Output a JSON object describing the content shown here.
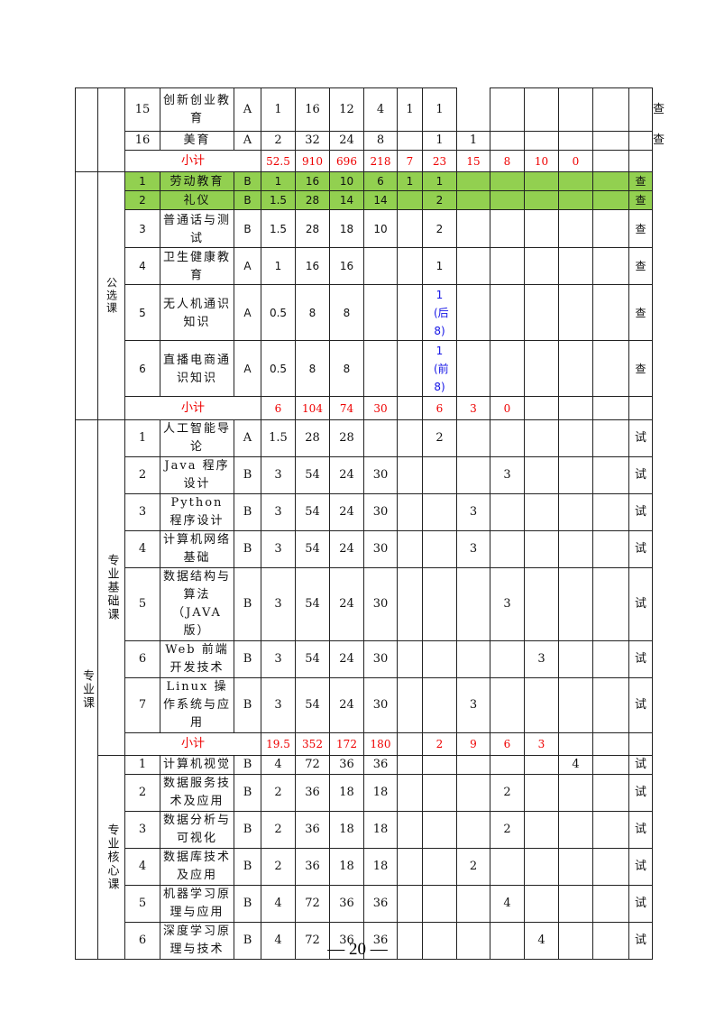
{
  "page_number": "— 20 —",
  "colors": {
    "green_highlight": "#92d050",
    "subtotal_red": "#ee0000",
    "note_blue": "#1414e6"
  },
  "groups": [
    {
      "outer": "",
      "inner": "",
      "rows": [
        {
          "no": "15",
          "name": "创新创业教育",
          "type": "A",
          "vals": [
            "1",
            "16",
            "12",
            "4",
            "1",
            "1",
            "",
            "",
            "",
            "",
            "",
            ""
          ],
          "exam": "查"
        },
        {
          "no": "16",
          "name": "美育",
          "type": "A",
          "vals": [
            "2",
            "32",
            "24",
            "8",
            "",
            "1",
            "1",
            "",
            "",
            "",
            "",
            ""
          ],
          "exam": "查"
        },
        {
          "subtotal": "小计",
          "vals": [
            "52.5",
            "910",
            "696",
            "218",
            "7",
            "23",
            "15",
            "8",
            "10",
            "0",
            ""
          ],
          "exam": ""
        }
      ]
    },
    {
      "outer": "",
      "inner": "公选课",
      "rows": [
        {
          "no": "1",
          "name": "劳动教育",
          "type": "B",
          "vals": [
            "1",
            "16",
            "10",
            "6",
            "1",
            "1",
            "",
            "",
            "",
            "",
            ""
          ],
          "exam": "查",
          "green": true
        },
        {
          "no": "2",
          "name": "礼仪",
          "type": "B",
          "vals": [
            "1.5",
            "28",
            "14",
            "14",
            "",
            "2",
            "",
            "",
            "",
            "",
            ""
          ],
          "exam": "查",
          "green": true
        },
        {
          "no": "3",
          "name": "普通话与测试",
          "type": "B",
          "vals": [
            "1.5",
            "28",
            "18",
            "10",
            "",
            "2",
            "",
            "",
            "",
            "",
            ""
          ],
          "exam": "查"
        },
        {
          "no": "4",
          "name": "卫生健康教育",
          "type": "A",
          "vals": [
            "1",
            "16",
            "16",
            "",
            "",
            "1",
            "",
            "",
            "",
            "",
            ""
          ],
          "exam": "查"
        },
        {
          "no": "5",
          "name": "无人机通识知识",
          "type": "A",
          "vals": [
            "0.5",
            "8",
            "8",
            "",
            "",
            "1(后8)",
            "",
            "",
            "",
            "",
            ""
          ],
          "exam": "查"
        },
        {
          "no": "6",
          "name": "直播电商通识知识",
          "type": "A",
          "vals": [
            "0.5",
            "8",
            "8",
            "",
            "",
            "1(前8)",
            "",
            "",
            "",
            "",
            ""
          ],
          "exam": "查"
        },
        {
          "subtotal": "小计",
          "vals": [
            "6",
            "104",
            "74",
            "30",
            "",
            "6",
            "3",
            "0",
            "",
            "",
            ""
          ],
          "exam": ""
        }
      ]
    },
    {
      "outer": "专业课",
      "inner": "专业基础课",
      "rows": [
        {
          "no": "1",
          "name": "人工智能导论",
          "type": "A",
          "vals": [
            "1.5",
            "28",
            "28",
            "",
            "",
            "2",
            "",
            "",
            "",
            "",
            ""
          ],
          "exam": "试"
        },
        {
          "no": "2",
          "name": "Java 程序设计",
          "type": "B",
          "vals": [
            "3",
            "54",
            "24",
            "30",
            "",
            "",
            "",
            "3",
            "",
            "",
            ""
          ],
          "exam": "试"
        },
        {
          "no": "3",
          "name": "Python 程序设计",
          "type": "B",
          "vals": [
            "3",
            "54",
            "24",
            "30",
            "",
            "",
            "3",
            "",
            "",
            "",
            ""
          ],
          "exam": "试"
        },
        {
          "no": "4",
          "name": "计算机网络基础",
          "type": "B",
          "vals": [
            "3",
            "54",
            "24",
            "30",
            "",
            "",
            "3",
            "",
            "",
            "",
            ""
          ],
          "exam": "试"
        },
        {
          "no": "5",
          "name": "数据结构与算法（JAVA 版）",
          "type": "B",
          "vals": [
            "3",
            "54",
            "24",
            "30",
            "",
            "",
            "",
            "3",
            "",
            "",
            ""
          ],
          "exam": "试"
        },
        {
          "no": "6",
          "name": "Web 前端开发技术",
          "type": "B",
          "vals": [
            "3",
            "54",
            "24",
            "30",
            "",
            "",
            "",
            "",
            "3",
            "",
            ""
          ],
          "exam": "试"
        },
        {
          "no": "7",
          "name": "Linux 操作系统与应用",
          "type": "B",
          "vals": [
            "3",
            "54",
            "24",
            "30",
            "",
            "",
            "3",
            "",
            "",
            "",
            ""
          ],
          "exam": "试"
        },
        {
          "subtotal": "小计",
          "vals": [
            "19.5",
            "352",
            "172",
            "180",
            "",
            "2",
            "9",
            "6",
            "3",
            "",
            ""
          ],
          "exam": ""
        }
      ]
    },
    {
      "outer": "专业课",
      "inner": "专业核心课",
      "rows": [
        {
          "no": "1",
          "name": "计算机视觉",
          "type": "B",
          "vals": [
            "4",
            "72",
            "36",
            "36",
            "",
            "",
            "",
            "",
            "",
            "4",
            ""
          ],
          "exam": "试"
        },
        {
          "no": "2",
          "name": "数据服务技术及应用",
          "type": "B",
          "vals": [
            "2",
            "36",
            "18",
            "18",
            "",
            "",
            "",
            "2",
            "",
            "",
            ""
          ],
          "exam": "试"
        },
        {
          "no": "3",
          "name": "数据分析与可视化",
          "type": "B",
          "vals": [
            "2",
            "36",
            "18",
            "18",
            "",
            "",
            "",
            "2",
            "",
            "",
            ""
          ],
          "exam": "试"
        },
        {
          "no": "4",
          "name": "数据库技术及应用",
          "type": "B",
          "vals": [
            "2",
            "36",
            "18",
            "18",
            "",
            "",
            "2",
            "",
            "",
            "",
            ""
          ],
          "exam": "试"
        },
        {
          "no": "5",
          "name": "机器学习原理与应用",
          "type": "B",
          "vals": [
            "4",
            "72",
            "36",
            "36",
            "",
            "",
            "",
            "4",
            "",
            "",
            ""
          ],
          "exam": "试"
        },
        {
          "no": "6",
          "name": "深度学习原理与技术",
          "type": "B",
          "vals": [
            "4",
            "72",
            "36",
            "36",
            "",
            "",
            "",
            "",
            "4",
            "",
            ""
          ],
          "exam": "试"
        }
      ]
    }
  ]
}
